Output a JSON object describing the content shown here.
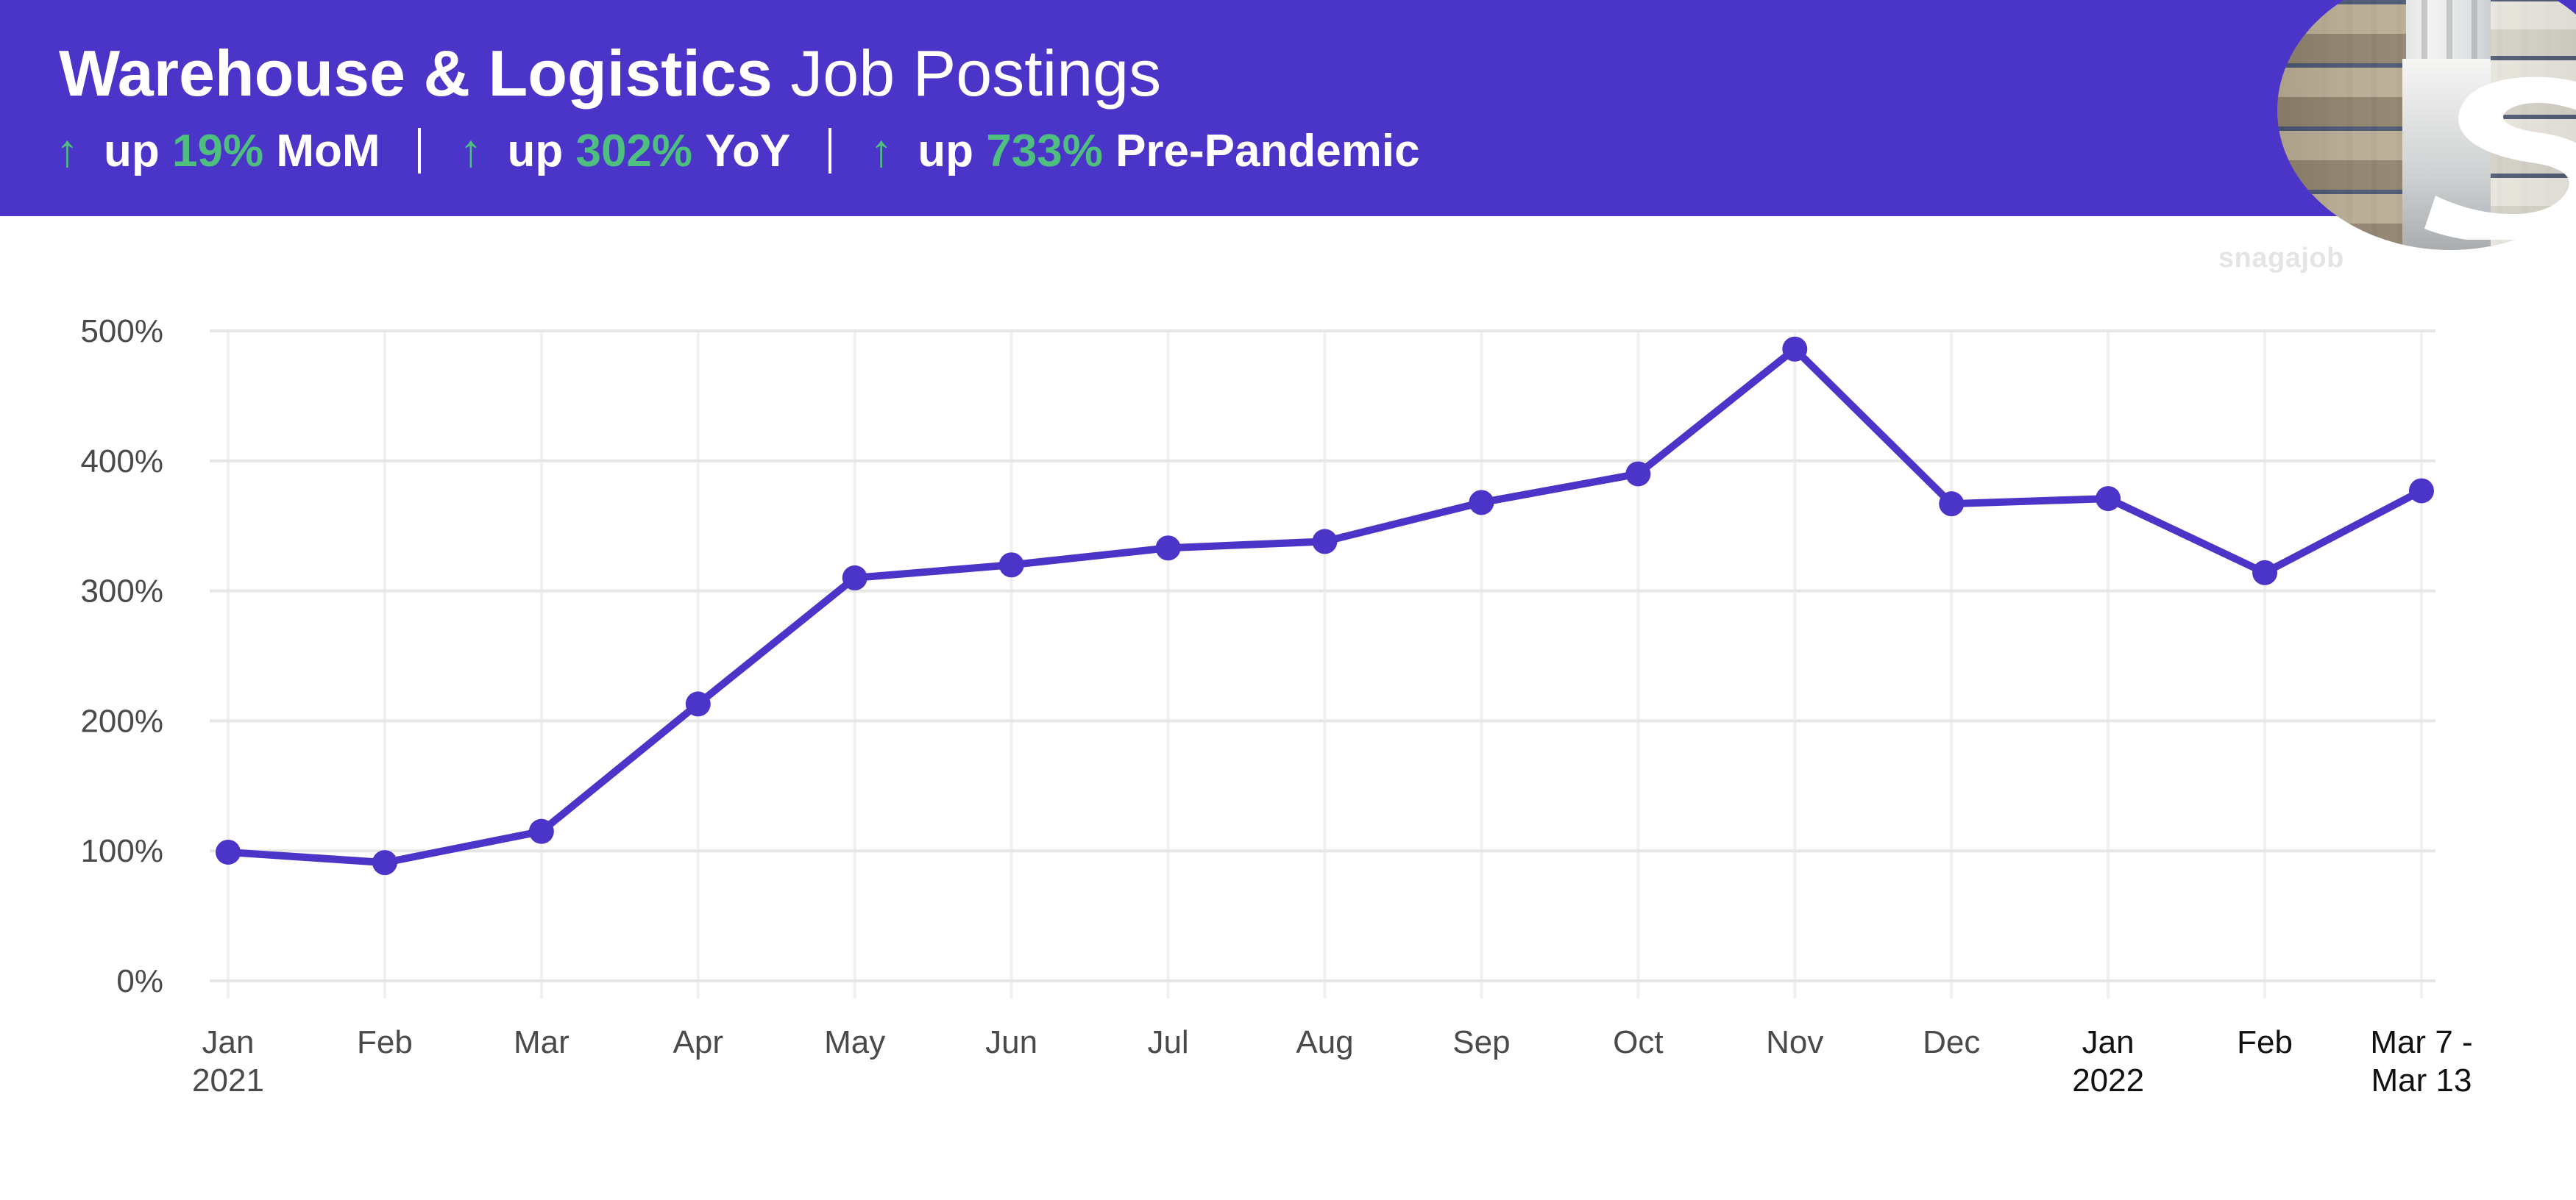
{
  "header": {
    "title_bold": "Warehouse & Logistics",
    "title_light": "Job Postings",
    "stats": [
      {
        "arrow": "↑",
        "prefix": "up",
        "value": "19%",
        "label": "MoM"
      },
      {
        "arrow": "↑",
        "prefix": "up",
        "value": "302%",
        "label": "YoY"
      },
      {
        "arrow": "↑",
        "prefix": "up",
        "value": "733%",
        "label": "Pre-Pandemic"
      }
    ]
  },
  "brand": {
    "watermark": "snagajob",
    "logo_icon": "snagajob-s-logo",
    "photo_icon": "warehouse-aisle-photo"
  },
  "colors": {
    "header_bg": "#4a35c8",
    "accent_green": "#4fbf7f",
    "series": "#4a35c8",
    "grid": "#e6e6e6"
  },
  "chart_data": {
    "type": "line",
    "title": "",
    "xlabel": "",
    "ylabel": "",
    "ylim": [
      0,
      500
    ],
    "yticks": [
      0,
      100,
      200,
      300,
      400,
      500
    ],
    "ytick_labels": [
      "0%",
      "100%",
      "200%",
      "300%",
      "400%",
      "500%"
    ],
    "grid": true,
    "categories": [
      {
        "line1": "Jan",
        "line2": "2021",
        "bold": false
      },
      {
        "line1": "Feb",
        "line2": "",
        "bold": false
      },
      {
        "line1": "Mar",
        "line2": "",
        "bold": false
      },
      {
        "line1": "Apr",
        "line2": "",
        "bold": false
      },
      {
        "line1": "May",
        "line2": "",
        "bold": false
      },
      {
        "line1": "Jun",
        "line2": "",
        "bold": false
      },
      {
        "line1": "Jul",
        "line2": "",
        "bold": false
      },
      {
        "line1": "Aug",
        "line2": "",
        "bold": false
      },
      {
        "line1": "Sep",
        "line2": "",
        "bold": false
      },
      {
        "line1": "Oct",
        "line2": "",
        "bold": false
      },
      {
        "line1": "Nov",
        "line2": "",
        "bold": false
      },
      {
        "line1": "Dec",
        "line2": "",
        "bold": false
      },
      {
        "line1": "Jan",
        "line2": "2022",
        "bold": true
      },
      {
        "line1": "Feb",
        "line2": "",
        "bold": true
      },
      {
        "line1": "Mar 7 -",
        "line2": "Mar 13",
        "bold": true
      }
    ],
    "series": [
      {
        "values": [
          99,
          91,
          115,
          213,
          310,
          320,
          333,
          338,
          368,
          390,
          486,
          367,
          371,
          314,
          377
        ]
      }
    ]
  }
}
